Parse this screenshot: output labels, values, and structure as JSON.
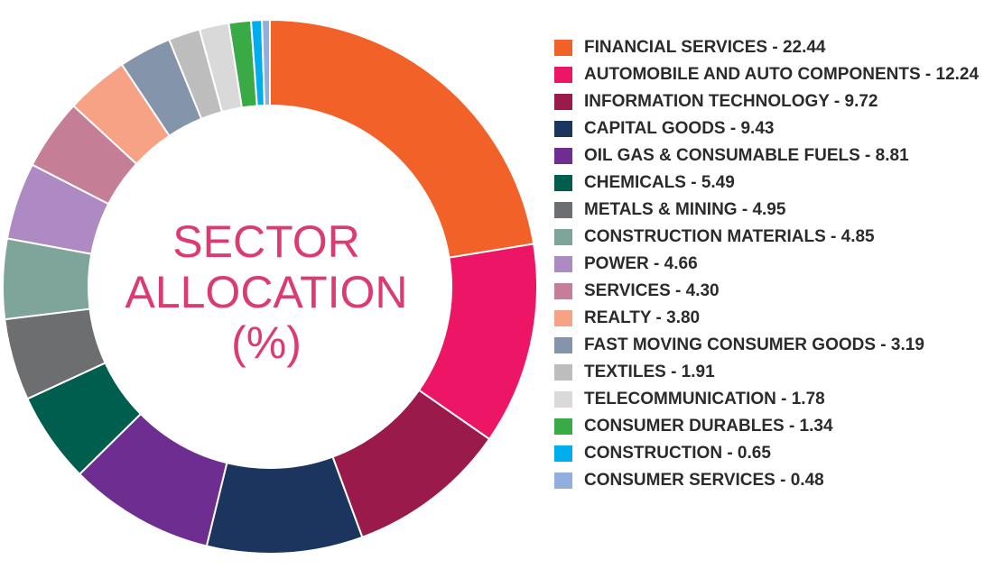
{
  "chart_data": {
    "type": "pie",
    "title": "SECTOR ALLOCATION (%)",
    "title_lines": [
      "SECTOR",
      "ALLOCATION",
      "(%)"
    ],
    "legend_placement": "right",
    "categories": [
      "FINANCIAL SERVICES",
      "AUTOMOBILE AND AUTO COMPONENTS",
      "INFORMATION TECHNOLOGY",
      "CAPITAL GOODS",
      "OIL GAS & CONSUMABLE FUELS",
      "CHEMICALS",
      "METALS & MINING",
      "CONSTRUCTION MATERIALS",
      "POWER",
      "SERVICES",
      "REALTY",
      "FAST MOVING CONSUMER GOODS",
      "TEXTILES",
      "TELECOMMUNICATION",
      "CONSUMER DURABLES",
      "CONSTRUCTION",
      "CONSUMER SERVICES"
    ],
    "values": [
      22.44,
      12.24,
      9.72,
      9.43,
      8.81,
      5.49,
      4.95,
      4.85,
      4.66,
      4.3,
      3.8,
      3.19,
      1.91,
      1.78,
      1.34,
      0.65,
      0.48
    ],
    "legend_labels": [
      "FINANCIAL SERVICES - 22.44",
      "AUTOMOBILE AND AUTO COMPONENTS - 12.24",
      "INFORMATION TECHNOLOGY - 9.72",
      "CAPITAL GOODS - 9.43",
      "OIL GAS & CONSUMABLE FUELS - 8.81",
      "CHEMICALS - 5.49",
      "METALS & MINING - 4.95",
      "CONSTRUCTION MATERIALS - 4.85",
      "POWER - 4.66",
      "SERVICES - 4.30",
      "REALTY - 3.80",
      "FAST MOVING CONSUMER GOODS - 3.19",
      "TEXTILES - 1.91",
      "TELECOMMUNICATION - 1.78",
      "CONSUMER DURABLES  - 1.34",
      "CONSTRUCTION  - 0.65",
      "CONSUMER SERVICES  - 0.48"
    ],
    "colors": [
      "#f26128",
      "#ec1566",
      "#9a1a4b",
      "#1c355e",
      "#6d2d91",
      "#005e4e",
      "#6d6e70",
      "#7fa59a",
      "#ad8bc2",
      "#c47f97",
      "#f7a285",
      "#8494ab",
      "#bdbdbd",
      "#d9d9d9",
      "#3aaa47",
      "#00adee",
      "#92aedf"
    ],
    "title_color": "#dc3a72"
  }
}
